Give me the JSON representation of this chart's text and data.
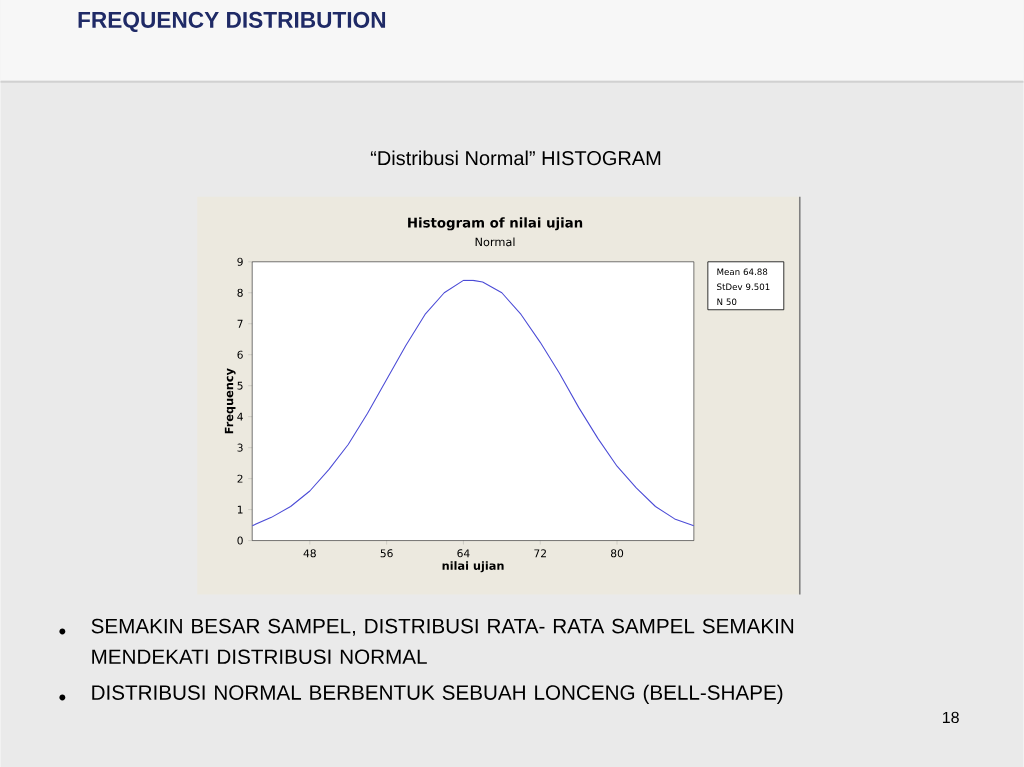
{
  "chart_data": {
    "type": "line",
    "title": "Histogram of nilai ujian",
    "subtitle": "Normal",
    "xlabel": "nilai ujian",
    "ylabel": "Frequency",
    "x": [
      42,
      44,
      46,
      48,
      50,
      52,
      54,
      56,
      58,
      60,
      62,
      64,
      65,
      66,
      68,
      70,
      72,
      74,
      76,
      78,
      80,
      82,
      84,
      86,
      88
    ],
    "values": [
      0.48,
      0.75,
      1.1,
      1.6,
      2.3,
      3.1,
      4.1,
      5.2,
      6.3,
      7.3,
      8.0,
      8.4,
      8.4,
      8.35,
      8.0,
      7.3,
      6.4,
      5.4,
      4.3,
      3.3,
      2.4,
      1.7,
      1.1,
      0.7,
      0.48
    ],
    "color": "#4b4bd6",
    "xlim": [
      42,
      88
    ],
    "xticks": [
      48,
      56,
      64,
      72,
      80
    ],
    "ylim": [
      0,
      9
    ],
    "yticks": [
      0,
      1,
      2,
      3,
      4,
      5,
      6,
      7,
      8,
      9
    ],
    "grid": false,
    "marker": "none",
    "line_style": "solid",
    "annotations": [
      "Mean 64.88",
      "StDev 9.501",
      "N 50",
      "FREQUENCY DISTRIBUTION",
      "“Distribusi Normal”  HISTOGRAM",
      "SEMAKIN BESAR SAMPEL, DISTRIBUSI RATA- RATA SAMPEL SEMAKIN MENDEKATI DISTRIBUSI NORMAL",
      "DISTRIBUSI NORMAL BERBENTUK SEBUAH LONCENG (BELL-SHAPE)",
      "18"
    ]
  }
}
